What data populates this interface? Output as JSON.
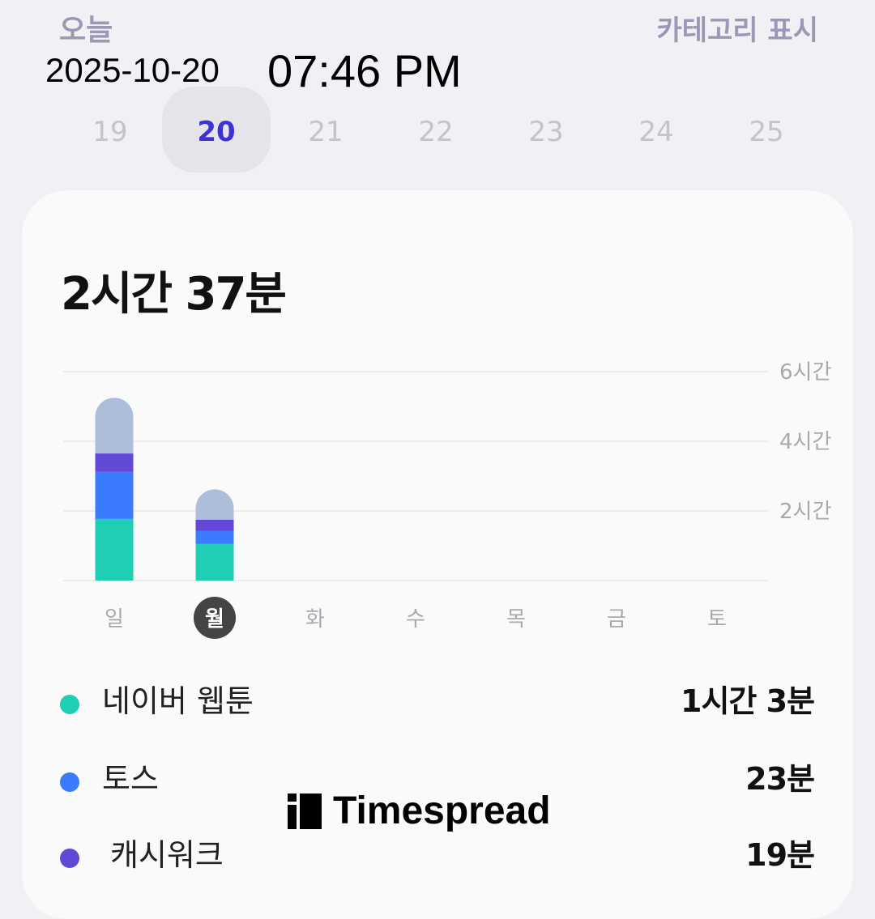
{
  "header": {
    "today_label": "오늘",
    "category_label": "카테고리 표시"
  },
  "overlay": {
    "date": "2025-10-20",
    "time": "07:46 PM"
  },
  "date_strip": {
    "dates": [
      "19",
      "20",
      "21",
      "22",
      "23",
      "24",
      "25"
    ],
    "selected": "20",
    "selected_color": "#3c32d6"
  },
  "summary": {
    "total": "2시간 37분"
  },
  "chart_data": {
    "type": "bar",
    "stacked": true,
    "categories": [
      "일",
      "월",
      "화",
      "수",
      "목",
      "금",
      "토"
    ],
    "selected_category": "월",
    "y_unit": "hours",
    "ylim": [
      0,
      6
    ],
    "yticks": [
      {
        "value": 2,
        "label": "2시간"
      },
      {
        "value": 4,
        "label": "4시간"
      },
      {
        "value": 6,
        "label": "6시간"
      }
    ],
    "grid": true,
    "series": [
      {
        "name": "네이버 웹툰",
        "color": "#1fcfb5",
        "values": [
          1.77,
          1.05,
          0,
          0,
          0,
          0,
          0
        ]
      },
      {
        "name": "토스",
        "color": "#3a7bff",
        "values": [
          1.35,
          0.38,
          0,
          0,
          0,
          0,
          0
        ]
      },
      {
        "name": "캐시워크",
        "color": "#6248d6",
        "values": [
          0.53,
          0.32,
          0,
          0,
          0,
          0,
          0
        ]
      },
      {
        "color": "#aebdd9",
        "values": [
          1.6,
          0.87,
          0,
          0,
          0,
          0,
          0
        ]
      }
    ]
  },
  "legend": [
    {
      "name": "네이버 웹툰",
      "value": "1시간 3분",
      "color": "#1fcfb5"
    },
    {
      "name": "토스",
      "value": "23분",
      "color": "#3a7bff"
    },
    {
      "name": "캐시워크",
      "value": "19분",
      "color": "#6248d6"
    }
  ],
  "watermark": {
    "text": "Timespread"
  }
}
